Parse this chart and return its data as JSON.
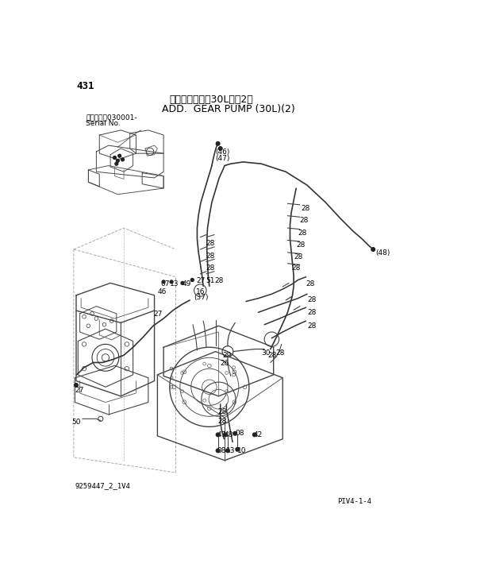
{
  "bg_color": "#ffffff",
  "title_jp": "追加ポンプ　（30L）（2）",
  "title_en": "ADD.  GEAR PUMP (30L)(2)",
  "page_num": "431",
  "serial_line1": "適用号機　030001-",
  "serial_line2": "Serial No.",
  "doc_code": "9259447_2_1V4",
  "page_ref": "PIV4-1-4",
  "figsize": [
    6.2,
    7.24
  ],
  "dpi": 100
}
